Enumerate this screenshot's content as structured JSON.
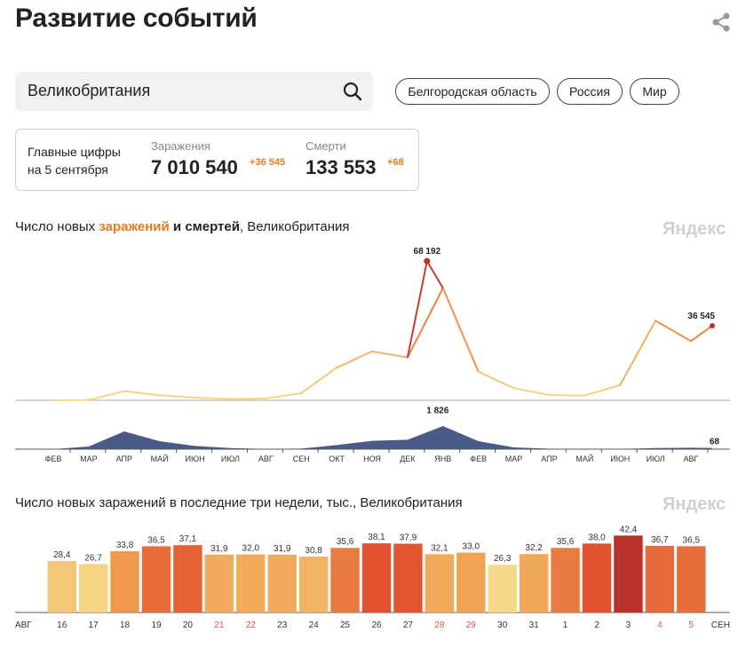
{
  "page_title": "Развитие событий",
  "share_icon": "share-icon",
  "search": {
    "value": "Великобритания",
    "icon": "search-icon"
  },
  "regions": [
    "Белгородская область",
    "Россия",
    "Мир"
  ],
  "stats": {
    "label_line1": "Главные цифры",
    "label_line2": "на 5 сентября",
    "infections": {
      "caption": "Заражения",
      "value": "7 010 540",
      "increment": "+36 545"
    },
    "deaths": {
      "caption": "Смерти",
      "value": "133 553",
      "increment": "+68"
    }
  },
  "colors": {
    "accent": "#e07b1f",
    "deaths_fill": "#4a5b8a",
    "peak": "#b8322a",
    "low": "#f7d98a",
    "watermark": "#d0d0d0"
  },
  "watermark": "Яндекс",
  "chart1": {
    "title_prefix": "Число новых ",
    "title_highlight": "заражений",
    "title_middle": " и ",
    "title_bold": "смертей",
    "title_suffix": ", Великобритания",
    "peak_infections_label": "68 192",
    "last_infections_label": "36 545",
    "peak_deaths_label": "1 826",
    "last_deaths_label": "68"
  },
  "chart2": {
    "title": "Число новых заражений в последние три недели, тыс., Великобритания"
  },
  "chart_data": [
    {
      "type": "area",
      "x": [
        "ФЕВ",
        "МАР",
        "АПР",
        "МАЙ",
        "ИЮН",
        "ИЮЛ",
        "АВГ",
        "СЕН",
        "ОКТ",
        "НОЯ",
        "ДЕК",
        "ЯНВ",
        "ФЕВ",
        "МАР",
        "АПР",
        "МАЙ",
        "ИЮН",
        "ИЮЛ",
        "АВГ"
      ],
      "series": [
        {
          "name": "заражений",
          "values": [
            0,
            150,
            4500,
            2500,
            1300,
            700,
            950,
            3500,
            16000,
            24000,
            21000,
            55000,
            14000,
            6000,
            2600,
            2300,
            7500,
            39000,
            29000
          ],
          "peak": 68192,
          "last": 36545
        },
        {
          "name": "смертей",
          "values": [
            0,
            150,
            1000,
            450,
            180,
            60,
            15,
            30,
            230,
            470,
            530,
            1300,
            450,
            100,
            25,
            12,
            15,
            60,
            80
          ],
          "peak": 1826,
          "last": 68
        }
      ]
    },
    {
      "type": "bar",
      "title": "Число новых заражений в последние три недели, тыс., Великобритания",
      "start_label": "АВГ",
      "end_label": "СЕН",
      "categories": [
        "16",
        "17",
        "18",
        "19",
        "20",
        "21",
        "22",
        "23",
        "24",
        "25",
        "26",
        "27",
        "28",
        "29",
        "30",
        "31",
        "1",
        "2",
        "3",
        "4",
        "5"
      ],
      "values": [
        28.4,
        26.7,
        33.8,
        36.5,
        37.1,
        31.9,
        32.0,
        31.9,
        30.8,
        35.6,
        38.1,
        37.9,
        32.1,
        33.0,
        26.3,
        32.2,
        35.6,
        38.0,
        42.4,
        36.7,
        36.5
      ],
      "value_labels": [
        "28,4",
        "26,7",
        "33,8",
        "36,5",
        "37,1",
        "31,9",
        "32,0",
        "31,9",
        "30,8",
        "35,6",
        "38,1",
        "37,9",
        "32,1",
        "33,0",
        "26,3",
        "32,2",
        "35,6",
        "38,0",
        "42,4",
        "36,7",
        "36,5"
      ],
      "weekend_categories": [
        "21",
        "22",
        "28",
        "29",
        "4",
        "5"
      ]
    }
  ]
}
